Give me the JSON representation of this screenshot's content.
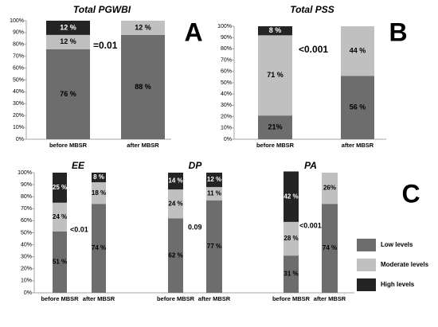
{
  "colors": {
    "low": "#6d6d6d",
    "moderate": "#c0c0c0",
    "high": "#242424",
    "axis": "#a6a6a6",
    "text": "#000000",
    "bar_label_text": "#000000"
  },
  "legend": {
    "placement": "bottom-right",
    "items": [
      {
        "key": "low",
        "label": "Low levels"
      },
      {
        "key": "moderate",
        "label": "Moderate levels"
      },
      {
        "key": "high",
        "label": "High levels"
      }
    ]
  },
  "chart_data": [
    {
      "type": "bar",
      "stacked": true,
      "panel": "A",
      "title": "Total PGWBI",
      "y_ticks": [
        "0%",
        "10%",
        "20%",
        "30%",
        "40%",
        "50%",
        "60%",
        "70%",
        "80%",
        "90%",
        "100%"
      ],
      "ylim": [
        0,
        100
      ],
      "categories": [
        "before MBSR",
        "after MBSR"
      ],
      "series": [
        {
          "key": "low",
          "values": [
            76,
            88
          ],
          "labels": [
            "76 %",
            "88 %"
          ]
        },
        {
          "key": "moderate",
          "values": [
            12,
            12
          ],
          "labels": [
            "12 %",
            "12 %"
          ]
        },
        {
          "key": "high",
          "values": [
            12,
            0
          ],
          "labels": [
            "12 %",
            ""
          ]
        }
      ],
      "annotation": "=0.01"
    },
    {
      "type": "bar",
      "stacked": true,
      "panel": "B",
      "title": "Total PSS",
      "y_ticks": [
        "0%",
        "10%",
        "20%",
        "30%",
        "40%",
        "50%",
        "60%",
        "70%",
        "80%",
        "90%",
        "100%"
      ],
      "ylim": [
        0,
        100
      ],
      "categories": [
        "before MBSR",
        "after MBSR"
      ],
      "series": [
        {
          "key": "low",
          "values": [
            21,
            56
          ],
          "labels": [
            "21%",
            "56 %"
          ]
        },
        {
          "key": "moderate",
          "values": [
            71,
            44
          ],
          "labels": [
            "71 %",
            "44 %"
          ]
        },
        {
          "key": "high",
          "values": [
            8,
            0
          ],
          "labels": [
            "8 %",
            ""
          ]
        }
      ],
      "annotation": "<0.001"
    },
    {
      "type": "bar",
      "stacked": true,
      "panel": "C",
      "title": "",
      "y_ticks": [
        "0%",
        "10%",
        "20%",
        "30%",
        "40%",
        "50%",
        "60%",
        "70%",
        "80%",
        "90%",
        "100%"
      ],
      "ylim": [
        0,
        100
      ],
      "groups": [
        {
          "name": "EE",
          "categories": [
            "before MBSR",
            "after MBSR"
          ],
          "series": [
            {
              "key": "low",
              "values": [
                51,
                74
              ],
              "labels": [
                "51 %",
                "74 %"
              ]
            },
            {
              "key": "moderate",
              "values": [
                24,
                18
              ],
              "labels": [
                "24 %",
                "18 %"
              ]
            },
            {
              "key": "high",
              "values": [
                25,
                8
              ],
              "labels": [
                "25 %",
                "8 %"
              ]
            }
          ],
          "annotation": "<0.01"
        },
        {
          "name": "DP",
          "categories": [
            "before MBSR",
            "after MBSR"
          ],
          "series": [
            {
              "key": "low",
              "values": [
                62,
                77
              ],
              "labels": [
                "62 %",
                "77 %"
              ]
            },
            {
              "key": "moderate",
              "values": [
                24,
                11
              ],
              "labels": [
                "24 %",
                "11 %"
              ]
            },
            {
              "key": "high",
              "values": [
                14,
                12
              ],
              "labels": [
                "14 %",
                "12 %"
              ]
            }
          ],
          "annotation": "0.09"
        },
        {
          "name": "PA",
          "categories": [
            "before MBSR",
            "after MBSR"
          ],
          "series": [
            {
              "key": "low",
              "values": [
                31,
                74
              ],
              "labels": [
                "31 %",
                "74 %"
              ]
            },
            {
              "key": "moderate",
              "values": [
                28,
                26
              ],
              "labels": [
                "28 %",
                "26%"
              ]
            },
            {
              "key": "high",
              "values": [
                42,
                0
              ],
              "labels": [
                "42 %",
                ""
              ]
            }
          ],
          "annotation": "<0.001"
        }
      ]
    }
  ]
}
